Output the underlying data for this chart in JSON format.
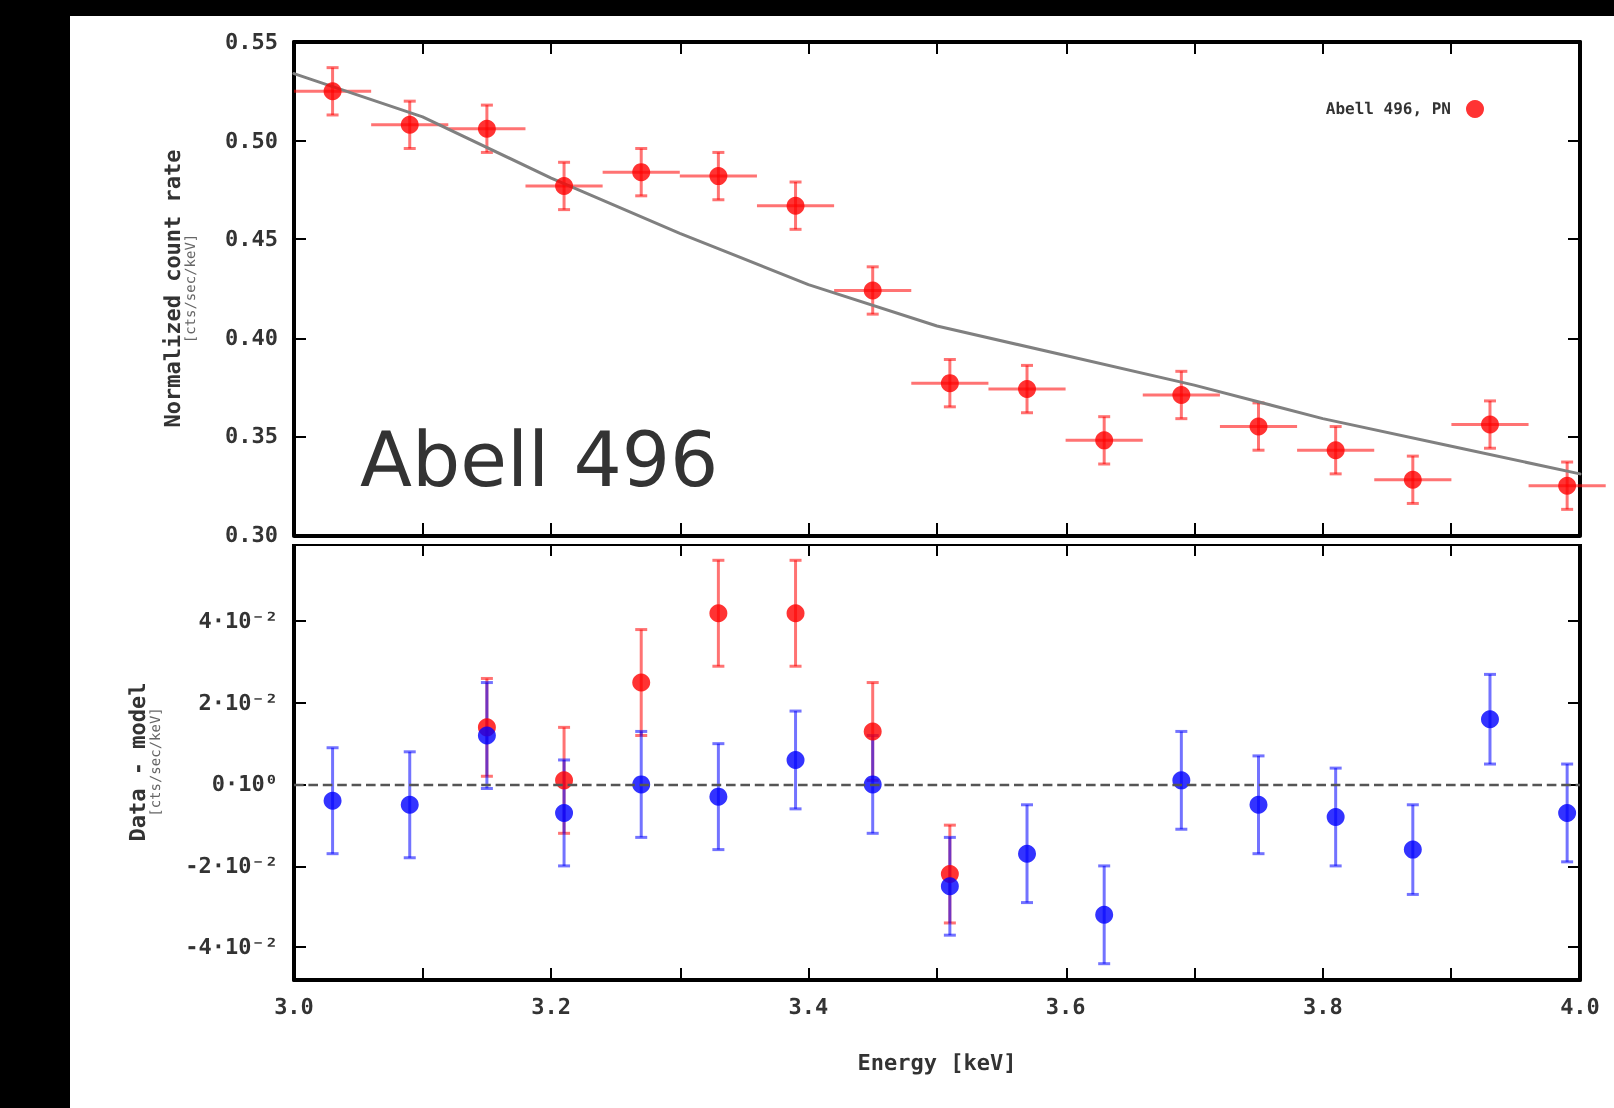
{
  "chart_data": [
    {
      "type": "scatter",
      "ylabel": "Normalized count rate\n[cts/sec/keV]",
      "annotations": [
        "Abell 496"
      ],
      "xlim": [
        3.0,
        4.0
      ],
      "xticks": [
        {
          "value": 3,
          "label": null
        },
        {
          "value": 3.1,
          "label": null
        },
        {
          "value": 3.2,
          "label": null
        },
        {
          "value": 3.3,
          "label": null
        },
        {
          "value": 3.4,
          "label": null
        },
        {
          "value": 3.5,
          "label": null
        },
        {
          "value": 3.6,
          "label": null
        },
        {
          "value": 3.7,
          "label": null
        },
        {
          "value": 3.8,
          "label": null
        },
        {
          "value": 3.9,
          "label": null
        },
        {
          "value": 4,
          "label": null
        }
      ],
      "ylim": [
        0.3,
        0.55
      ],
      "yticks": [
        {
          "value": 0.3,
          "label": "0.30"
        },
        {
          "value": 0.35,
          "label": "0.35"
        },
        {
          "value": 0.4,
          "label": "0.40"
        },
        {
          "value": 0.45,
          "label": "0.45"
        },
        {
          "value": 0.5,
          "label": "0.50"
        },
        {
          "value": 0.55,
          "label": "0.55"
        }
      ],
      "tick_labels": "y",
      "legend": "top right",
      "marker": "circle",
      "grid": false,
      "series": [
        {
          "name": "Abell 496, PN",
          "color": "#ff0000",
          "x": [
            3.03,
            3.09,
            3.15,
            3.21,
            3.27,
            3.33,
            3.39,
            3.45,
            3.51,
            3.57,
            3.63,
            3.69,
            3.75,
            3.81,
            3.87,
            3.93,
            3.99
          ],
          "values": [
            0.525,
            0.508,
            0.506,
            0.477,
            0.484,
            0.482,
            0.467,
            0.424,
            0.377,
            0.374,
            0.348,
            0.371,
            0.355,
            0.343,
            0.328,
            0.356,
            0.325
          ],
          "errors": [
            0.012,
            0.012,
            0.012,
            0.012,
            0.012,
            0.012,
            0.012,
            0.012,
            0.012,
            0.012,
            0.012,
            0.012,
            0.012,
            0.012,
            0.012,
            0.012,
            0.012
          ],
          "xerrors": [
            0.03,
            0.03,
            0.03,
            0.03,
            0.03,
            0.03,
            0.03,
            0.03,
            0.03,
            0.03,
            0.03,
            0.03,
            0.03,
            0.03,
            0.03,
            0.03,
            0.03
          ]
        },
        {
          "type": "line",
          "color": "#808080",
          "marker": "none",
          "x": [
            3.0,
            3.1,
            3.2,
            3.3,
            3.4,
            3.5,
            3.6,
            3.7,
            3.8,
            3.9,
            4.0
          ],
          "values": [
            0.534,
            0.512,
            0.481,
            0.453,
            0.427,
            0.406,
            0.391,
            0.376,
            0.359,
            0.345,
            0.331
          ]
        }
      ]
    },
    {
      "type": "scatter",
      "xlabel": "Energy [keV]",
      "ylabel": "Data - model\n[cts/sec/keV]",
      "xlim": [
        3.0,
        4.0
      ],
      "xticks": [
        {
          "value": 3,
          "label": "3.0"
        },
        {
          "value": 3.1,
          "label": null
        },
        {
          "value": 3.2,
          "label": "3.2"
        },
        {
          "value": 3.3,
          "label": null
        },
        {
          "value": 3.4,
          "label": "3.4"
        },
        {
          "value": 3.5,
          "label": null
        },
        {
          "value": 3.6,
          "label": "3.6"
        },
        {
          "value": 3.7,
          "label": null
        },
        {
          "value": 3.8,
          "label": "3.8"
        },
        {
          "value": 3.9,
          "label": null
        },
        {
          "value": 4,
          "label": "4.0"
        }
      ],
      "ylim": [
        -0.048,
        0.059
      ],
      "yticks": [
        {
          "value": -0.04,
          "label": "-4·10⁻²"
        },
        {
          "value": -0.02,
          "label": "-2·10⁻²"
        },
        {
          "value": 0,
          "label": "0·10⁰"
        },
        {
          "value": 0.02,
          "label": "2·10⁻²"
        },
        {
          "value": 0.04,
          "label": "4·10⁻²"
        }
      ],
      "marker": "circle",
      "grid": false,
      "legend": false,
      "ref_lines": [
        {
          "axis": "y",
          "value": 0,
          "color": "#555555",
          "line_style": "dashed"
        }
      ],
      "series": [
        {
          "color": "#ff0000",
          "x": [
            3.15,
            3.21,
            3.27,
            3.33,
            3.39,
            3.45,
            3.51
          ],
          "values": [
            0.014,
            0.001,
            0.025,
            0.042,
            0.042,
            0.013,
            -0.022
          ],
          "errors": [
            0.012,
            0.013,
            0.013,
            0.013,
            0.013,
            0.012,
            0.012
          ]
        },
        {
          "color": "#0000ff",
          "x": [
            3.03,
            3.09,
            3.15,
            3.21,
            3.27,
            3.33,
            3.39,
            3.45,
            3.51,
            3.57,
            3.63,
            3.69,
            3.75,
            3.81,
            3.87,
            3.93,
            3.99
          ],
          "values": [
            -0.004,
            -0.005,
            0.012,
            -0.007,
            0.0,
            -0.003,
            0.006,
            0.0,
            -0.025,
            -0.017,
            -0.032,
            0.001,
            -0.005,
            -0.008,
            -0.016,
            0.016,
            -0.007
          ],
          "errors": [
            0.013,
            0.013,
            0.013,
            0.013,
            0.013,
            0.013,
            0.012,
            0.012,
            0.012,
            0.012,
            0.012,
            0.012,
            0.012,
            0.012,
            0.011,
            0.011,
            0.012
          ]
        }
      ]
    }
  ]
}
